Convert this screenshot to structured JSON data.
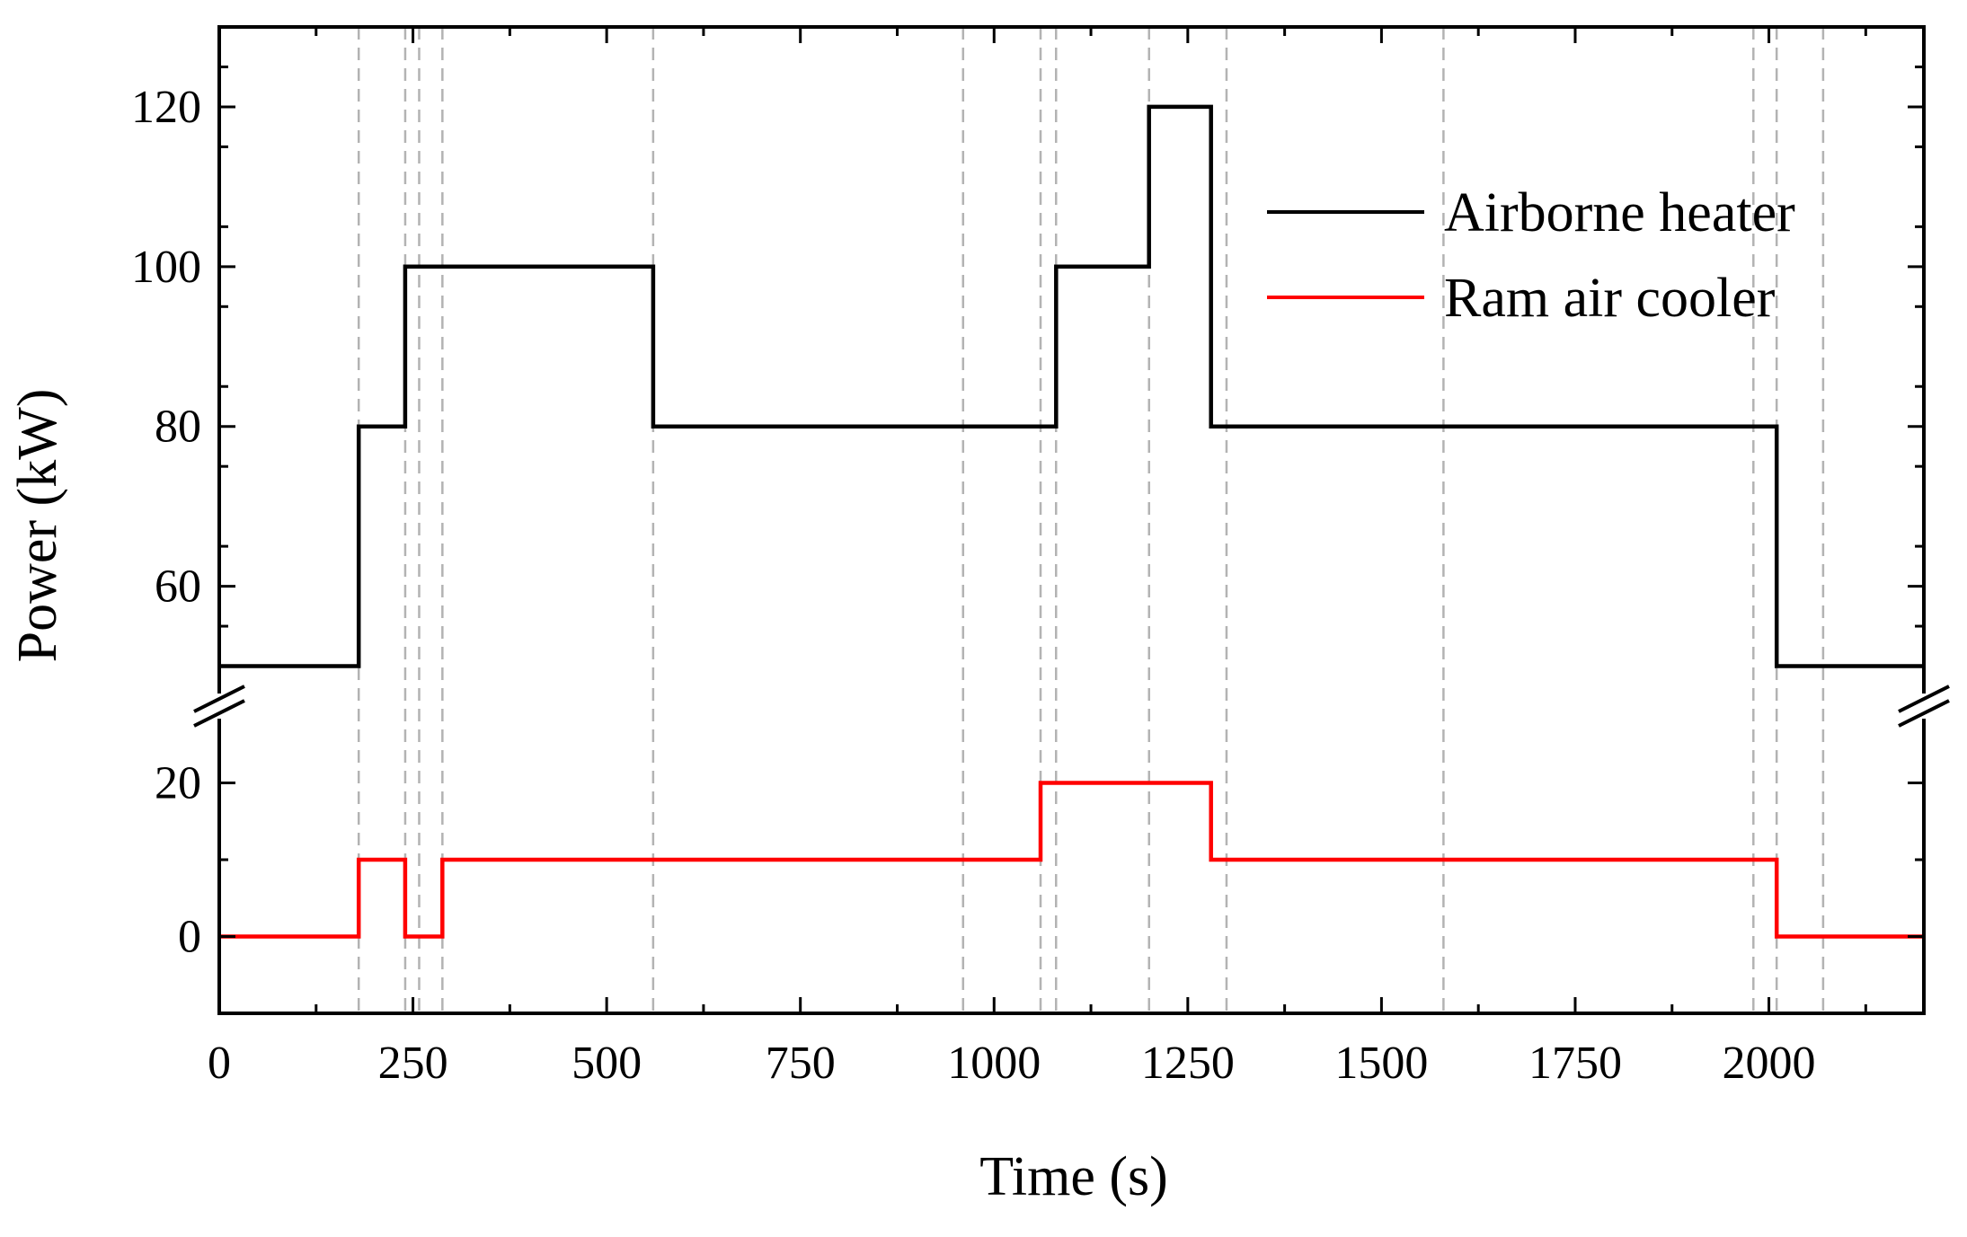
{
  "chart_data": {
    "type": "line",
    "title": "",
    "xlabel": "Time (s)",
    "ylabel": "Power (kW)",
    "xlim": [
      0,
      2200
    ],
    "x_ticks": [
      "0",
      "250",
      "500",
      "750",
      "1000",
      "1250",
      "1500",
      "1750",
      "2000"
    ],
    "x_tick_values": [
      0,
      250,
      500,
      750,
      1000,
      1250,
      1500,
      1750,
      2000
    ],
    "y_axis_break": true,
    "upper_panel": {
      "ylim": [
        45,
        130
      ],
      "y_ticks": [
        "60",
        "80",
        "100",
        "120"
      ],
      "y_tick_values": [
        60,
        80,
        100,
        120
      ]
    },
    "lower_panel": {
      "ylim": [
        -10,
        30
      ],
      "y_ticks": [
        "0",
        "20"
      ],
      "y_tick_values": [
        0,
        20
      ]
    },
    "grid": false,
    "legend_position": "top-right",
    "event_lines_x": [
      180,
      240,
      258,
      288,
      560,
      960,
      1060,
      1080,
      1200,
      1300,
      1580,
      1980,
      2010,
      2070
    ],
    "series": [
      {
        "name": "Airborne heater",
        "color": "#000000",
        "panel": "upper",
        "x": [
          0,
          180,
          180,
          240,
          240,
          560,
          560,
          1080,
          1080,
          1200,
          1200,
          1280,
          1280,
          2010,
          2010,
          2200
        ],
        "y": [
          50,
          50,
          80,
          80,
          100,
          100,
          80,
          80,
          100,
          100,
          120,
          120,
          80,
          80,
          50,
          50
        ]
      },
      {
        "name": "Ram air cooler",
        "color": "#ff0000",
        "panel": "lower",
        "x": [
          0,
          180,
          180,
          240,
          240,
          288,
          288,
          1060,
          1060,
          1280,
          1280,
          2010,
          2010,
          2200
        ],
        "y": [
          0,
          0,
          10,
          10,
          0,
          0,
          10,
          10,
          20,
          20,
          10,
          10,
          0,
          0
        ]
      }
    ]
  }
}
